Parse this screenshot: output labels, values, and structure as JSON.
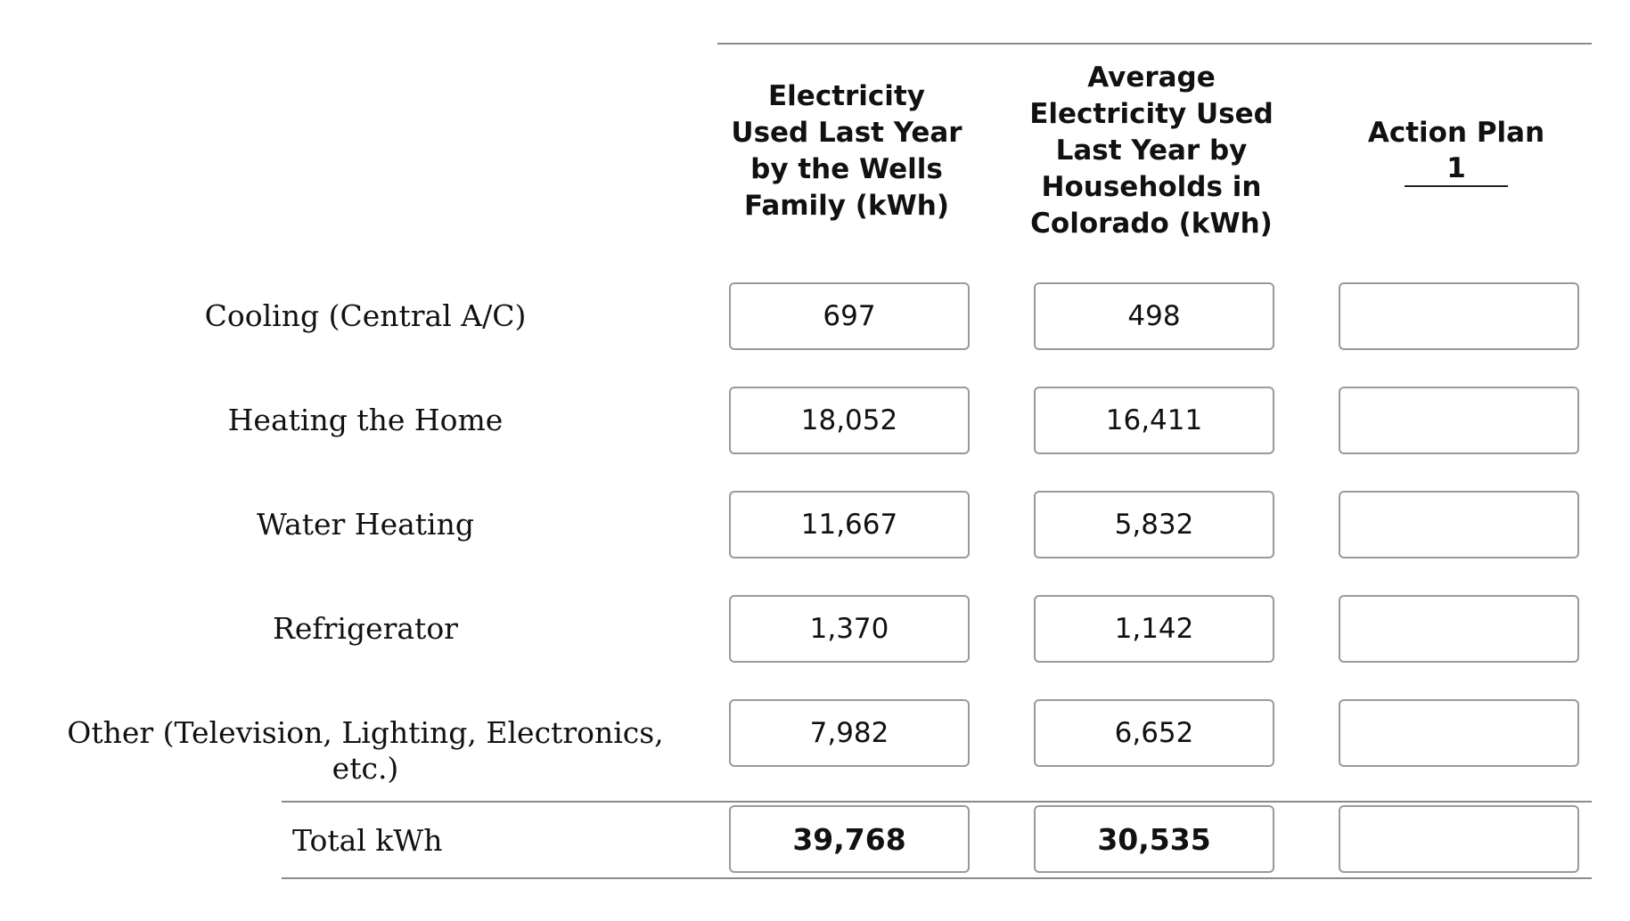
{
  "columns": {
    "family": "Electricity Used Last Year by the Wells Family (kWh)",
    "family_lines": [
      "Electricity",
      "Used Last Year",
      "by the Wells",
      "Family (kWh)"
    ],
    "average_lines": [
      "Average",
      "Electricity Used",
      "Last Year by",
      "Households in",
      "Colorado (kWh)"
    ],
    "plan_label": "Action Plan",
    "plan_number": "1"
  },
  "rows": [
    {
      "label": "Cooling (Central A/C)",
      "family": "697",
      "average": "498",
      "plan": ""
    },
    {
      "label": "Heating the Home",
      "family": "18,052",
      "average": "16,411",
      "plan": ""
    },
    {
      "label": "Water Heating",
      "family": "11,667",
      "average": "5,832",
      "plan": ""
    },
    {
      "label": "Refrigerator",
      "family": "1,370",
      "average": "1,142",
      "plan": ""
    },
    {
      "label": "Other (Television, Lighting, Electronics, etc.)",
      "family": "7,982",
      "average": "6,652",
      "plan": ""
    }
  ],
  "total": {
    "label": "Total kWh",
    "family": "39,768",
    "average": "30,535",
    "plan": ""
  }
}
